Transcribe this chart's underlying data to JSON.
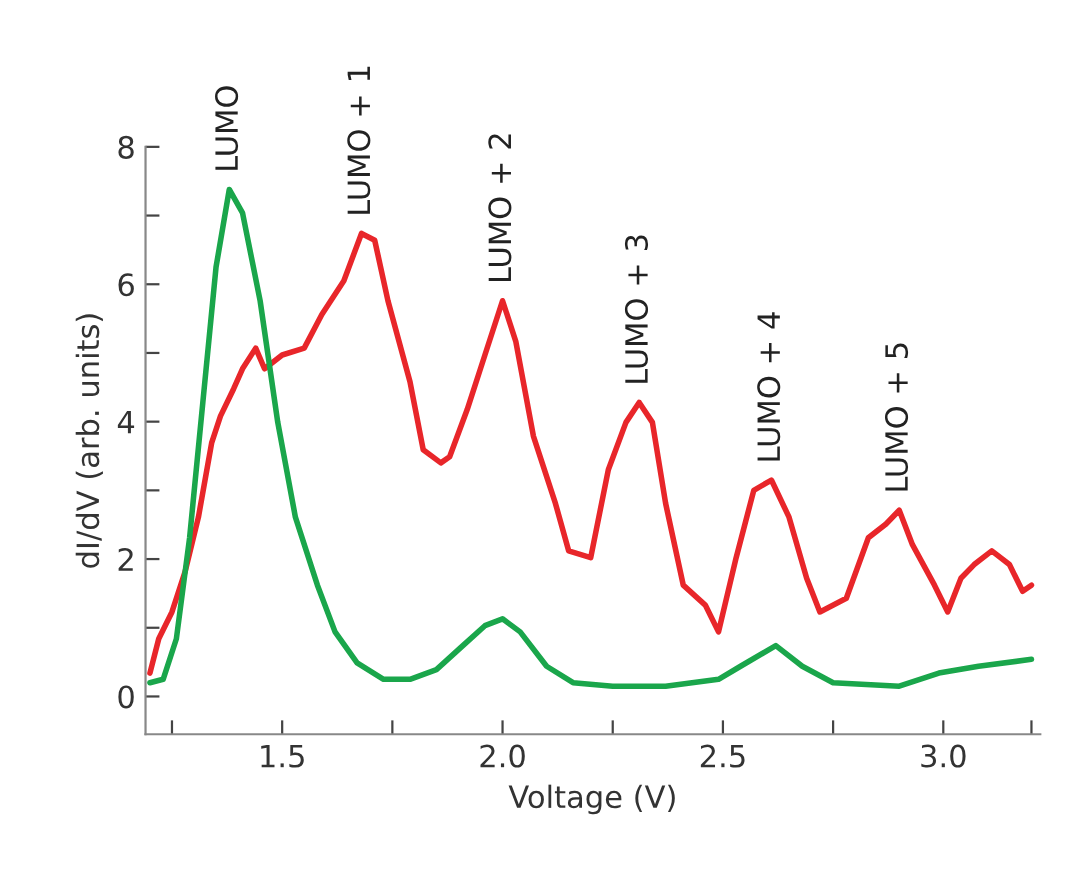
{
  "chart_data": {
    "type": "line",
    "xlabel": "Voltage (V)",
    "ylabel": "dI/dV (arb. units)",
    "xlim": [
      1.19,
      3.22
    ],
    "ylim": [
      -0.55,
      8.0
    ],
    "xticks": [
      {
        "value": 1.25,
        "label": null
      },
      1.5,
      {
        "value": 1.75,
        "label": null
      },
      {
        "value": 2.0,
        "label": "2.0"
      },
      {
        "value": 2.25,
        "label": null
      },
      2.5,
      {
        "value": 2.75,
        "label": null
      },
      {
        "value": 3.0,
        "label": "3.0"
      },
      {
        "value": 3.2,
        "label": null
      }
    ],
    "yticks": [
      0,
      {
        "value": 1,
        "label": null
      },
      2,
      {
        "value": 3,
        "label": null
      },
      4,
      {
        "value": 5,
        "label": null
      },
      6,
      {
        "value": 7,
        "label": null
      },
      8
    ],
    "grid": false,
    "legend": false,
    "line_style": "solid",
    "marker": "none",
    "annotations": [
      {
        "text": "LUMO",
        "x": 1.38,
        "y": 7.38
      },
      {
        "text": "LUMO + 1",
        "x": 1.68,
        "y": 6.74
      },
      {
        "text": "LUMO + 2",
        "x": 2.0,
        "y": 5.76
      },
      {
        "text": "LUMO + 3",
        "x": 2.31,
        "y": 4.28
      },
      {
        "text": "LUMO + 4",
        "x": 2.61,
        "y": 3.15
      },
      {
        "text": "LUMO + 5",
        "x": 2.9,
        "y": 2.71
      }
    ],
    "series": [
      {
        "color": "#e8262a",
        "x": [
          1.2,
          1.22,
          1.25,
          1.28,
          1.31,
          1.34,
          1.36,
          1.39,
          1.41,
          1.44,
          1.46,
          1.5,
          1.55,
          1.59,
          1.64,
          1.68,
          1.71,
          1.74,
          1.79,
          1.82,
          1.86,
          1.88,
          1.92,
          1.96,
          2.0,
          2.03,
          2.07,
          2.12,
          2.15,
          2.2,
          2.24,
          2.28,
          2.31,
          2.34,
          2.37,
          2.41,
          2.46,
          2.49,
          2.53,
          2.57,
          2.61,
          2.65,
          2.69,
          2.72,
          2.78,
          2.83,
          2.87,
          2.9,
          2.93,
          2.98,
          3.01,
          3.04,
          3.07,
          3.11,
          3.15,
          3.18,
          3.2
        ],
        "values": [
          0.34,
          0.84,
          1.23,
          1.82,
          2.61,
          3.69,
          4.08,
          4.48,
          4.77,
          5.07,
          4.77,
          4.97,
          5.07,
          5.56,
          6.05,
          6.74,
          6.64,
          5.76,
          4.58,
          3.59,
          3.4,
          3.49,
          4.18,
          4.97,
          5.76,
          5.17,
          3.79,
          2.81,
          2.12,
          2.02,
          3.3,
          3.99,
          4.28,
          3.99,
          2.81,
          1.62,
          1.33,
          0.94,
          2.02,
          3.0,
          3.15,
          2.61,
          1.72,
          1.23,
          1.43,
          2.31,
          2.51,
          2.71,
          2.21,
          1.62,
          1.23,
          1.72,
          1.92,
          2.12,
          1.92,
          1.53,
          1.62
        ]
      },
      {
        "color": "#1aa64b",
        "x": [
          1.2,
          1.23,
          1.26,
          1.29,
          1.32,
          1.35,
          1.38,
          1.41,
          1.45,
          1.49,
          1.53,
          1.58,
          1.62,
          1.67,
          1.73,
          1.79,
          1.85,
          1.91,
          1.96,
          2.0,
          2.04,
          2.1,
          2.16,
          2.25,
          2.37,
          2.49,
          2.54,
          2.62,
          2.68,
          2.75,
          2.9,
          2.99,
          3.08,
          3.2
        ],
        "values": [
          0.2,
          0.25,
          0.84,
          2.31,
          4.28,
          6.25,
          7.38,
          7.04,
          5.76,
          3.99,
          2.61,
          1.62,
          0.94,
          0.49,
          0.25,
          0.25,
          0.39,
          0.74,
          1.03,
          1.13,
          0.94,
          0.44,
          0.2,
          0.15,
          0.15,
          0.25,
          0.44,
          0.74,
          0.44,
          0.2,
          0.15,
          0.34,
          0.44,
          0.54
        ]
      }
    ]
  }
}
